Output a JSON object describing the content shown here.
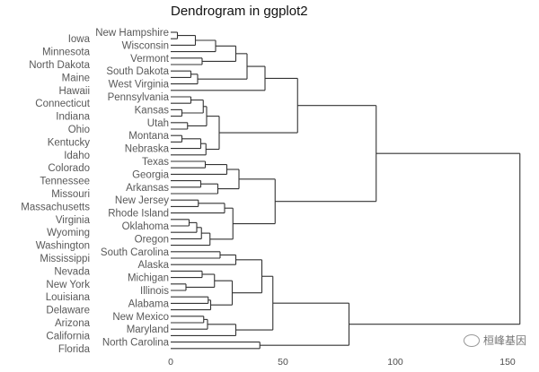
{
  "chart_data": {
    "type": "dendrogram",
    "title": "Dendrogram in ggplot2",
    "orientation": "horizontal",
    "xlim": [
      0,
      160
    ],
    "x_ticks": [
      "0",
      "50",
      "100",
      "150"
    ],
    "x_tick_values": [
      0,
      50,
      100,
      150
    ],
    "grid": false,
    "line_color": "#333333",
    "label_color": "#595959",
    "labels": [
      "New Hampshire",
      "Iowa",
      "Wisconsin",
      "Minnesota",
      "Vermont",
      "North Dakota",
      "South Dakota",
      "Maine",
      "West Virginia",
      "Hawaii",
      "Pennsylvania",
      "Connecticut",
      "Kansas",
      "Indiana",
      "Utah",
      "Ohio",
      "Montana",
      "Kentucky",
      "Nebraska",
      "Idaho",
      "Texas",
      "Colorado",
      "Georgia",
      "Tennessee",
      "Arkansas",
      "Missouri",
      "New Jersey",
      "Massachusetts",
      "Rhode Island",
      "Virginia",
      "Oklahoma",
      "Wyoming",
      "Oregon",
      "Washington",
      "South Carolina",
      "Mississippi",
      "Alaska",
      "Nevada",
      "Michigan",
      "New York",
      "Illinois",
      "Louisiana",
      "Alabama",
      "Delaware",
      "New Mexico",
      "Arizona",
      "Maryland",
      "California",
      "North Carolina",
      "Florida"
    ],
    "tree": {
      "h": 155.5,
      "c": [
        {
          "h": 91.5,
          "c": [
            {
              "h": 56.5,
              "c": [
                {
                  "h": 42,
                  "c": [
                    {
                      "h": 34,
                      "c": [
                        {
                          "h": 29,
                          "c": [
                            {
                              "h": 20,
                              "c": [
                                {
                                  "h": 11,
                                  "c": [
                                    {
                                      "h": 3,
                                      "c": [
                                        "New Hampshire",
                                        "Iowa"
                                      ]
                                    },
                                    "Wisconsin"
                                  ]
                                },
                                "Minnesota"
                              ]
                            },
                            {
                              "h": 14,
                              "c": [
                                "Vermont",
                                "North Dakota"
                              ]
                            }
                          ]
                        },
                        {
                          "h": 12,
                          "c": [
                            {
                              "h": 9,
                              "c": [
                                "South Dakota",
                                "Maine"
                              ]
                            },
                            "West Virginia"
                          ]
                        }
                      ]
                    },
                    "Hawaii"
                  ]
                },
                {
                  "h": 21.6,
                  "c": [
                    {
                      "h": 16,
                      "c": [
                        {
                          "h": 14.5,
                          "c": [
                            {
                              "h": 9,
                              "c": [
                                "Pennsylvania",
                                "Connecticut"
                              ]
                            },
                            {
                              "h": 5,
                              "c": [
                                "Kansas",
                                "Indiana"
                              ]
                            }
                          ]
                        },
                        {
                          "h": 7.5,
                          "c": [
                            "Utah",
                            "Ohio"
                          ]
                        }
                      ]
                    },
                    {
                      "h": 15.7,
                      "c": [
                        {
                          "h": 13.4,
                          "c": [
                            {
                              "h": 5,
                              "c": [
                                "Montana",
                                "Kentucky"
                              ]
                            },
                            "Nebraska"
                          ]
                        },
                        "Idaho"
                      ]
                    }
                  ]
                }
              ]
            },
            {
              "h": 46.5,
              "c": [
                {
                  "h": 30.4,
                  "c": [
                    {
                      "h": 25,
                      "c": [
                        {
                          "h": 15.4,
                          "c": [
                            "Texas",
                            "Colorado"
                          ]
                        },
                        "Georgia"
                      ]
                    },
                    {
                      "h": 21,
                      "c": [
                        {
                          "h": 13.4,
                          "c": [
                            "Tennessee",
                            "Arkansas"
                          ]
                        },
                        "Missouri"
                      ]
                    }
                  ]
                },
                {
                  "h": 27.7,
                  "c": [
                    {
                      "h": 24,
                      "c": [
                        {
                          "h": 12.3,
                          "c": [
                            "New Jersey",
                            "Massachusetts"
                          ]
                        },
                        "Rhode Island"
                      ]
                    },
                    {
                      "h": 17.5,
                      "c": [
                        {
                          "h": 13.7,
                          "c": [
                            {
                              "h": 11.6,
                              "c": [
                                {
                                  "h": 8.2,
                                  "c": [
                                    "Virginia",
                                    "Oklahoma"
                                  ]
                                },
                                "Wyoming"
                              ]
                            },
                            "Oregon"
                          ]
                        },
                        "Washington"
                      ]
                    }
                  ]
                }
              ]
            }
          ]
        },
        {
          "h": 79.4,
          "c": [
            {
              "h": 45.5,
              "c": [
                {
                  "h": 40.6,
                  "c": [
                    {
                      "h": 29,
                      "c": [
                        {
                          "h": 22,
                          "c": [
                            "South Carolina",
                            "Mississippi"
                          ]
                        },
                        "Alaska"
                      ]
                    },
                    {
                      "h": 27.4,
                      "c": [
                        {
                          "h": 19.5,
                          "c": [
                            {
                              "h": 14,
                              "c": [
                                "Nevada",
                                "Michigan"
                              ]
                            },
                            {
                              "h": 6.8,
                              "c": [
                                "New York",
                                "Illinois"
                              ]
                            }
                          ]
                        },
                        {
                          "h": 17.8,
                          "c": [
                            {
                              "h": 16.7,
                              "c": [
                                "Louisiana",
                                "Alabama"
                              ]
                            },
                            "Delaware"
                          ]
                        }
                      ]
                    }
                  ]
                },
                {
                  "h": 29,
                  "c": [
                    {
                      "h": 16.4,
                      "c": [
                        {
                          "h": 14.7,
                          "c": [
                            "New Mexico",
                            "Arizona"
                          ]
                        },
                        "Maryland"
                      ]
                    },
                    "California"
                  ]
                }
              ]
            },
            {
              "h": 39.7,
              "c": [
                "North Carolina",
                "Florida"
              ]
            }
          ]
        }
      ]
    }
  },
  "watermark": {
    "text": "桓峰基因",
    "icon": "wechat-icon"
  }
}
